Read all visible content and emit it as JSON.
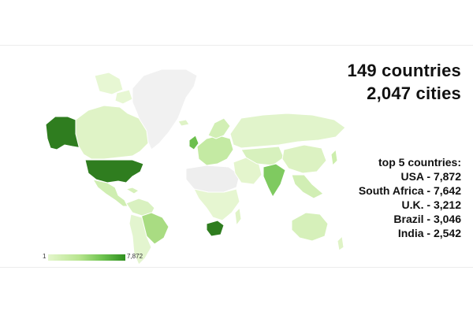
{
  "summary": {
    "countries": "149 countries",
    "cities": "2,047 cities"
  },
  "top5": {
    "title": "top 5 countries:",
    "items": [
      {
        "label": "USA - 7,872"
      },
      {
        "label": "South Africa - 7,642"
      },
      {
        "label": "U.K. - 3,212"
      },
      {
        "label": "Brazil - 3,046"
      },
      {
        "label": "India - 2,542"
      }
    ]
  },
  "legend": {
    "min": "1",
    "max": "7,872"
  },
  "colors": {
    "no_data": "#f0f0f0",
    "low": "#e4f6cc",
    "mid": "#b8e58f",
    "high": "#2f8f1f",
    "border": "#ffffff"
  }
}
